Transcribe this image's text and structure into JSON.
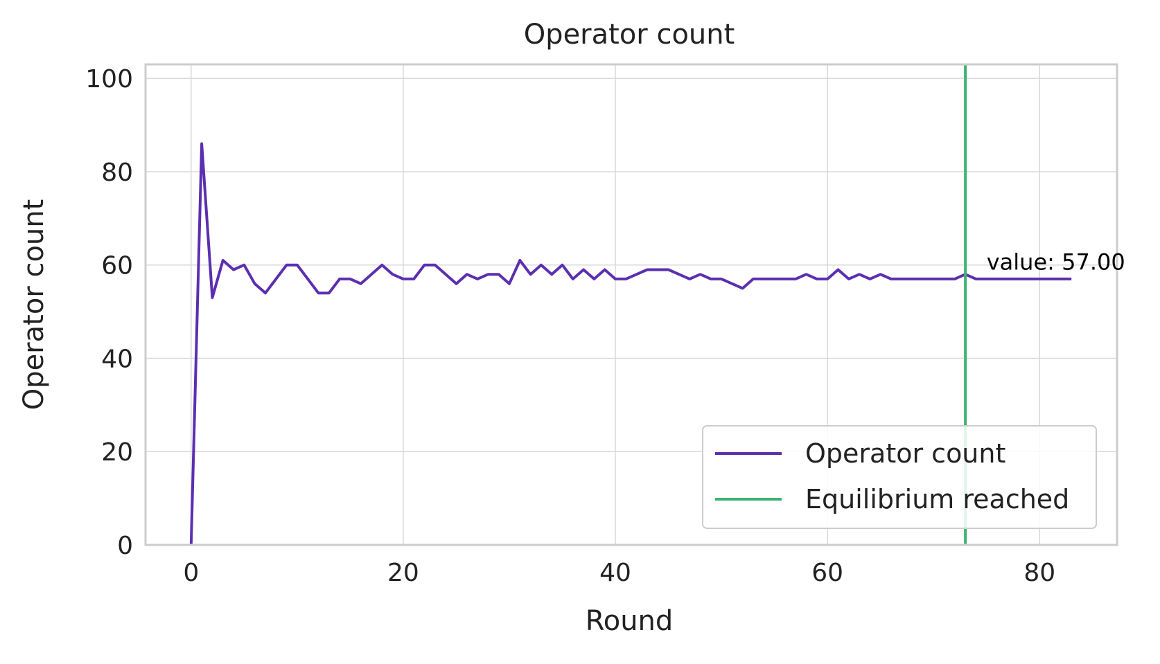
{
  "chart_data": {
    "type": "line",
    "title": "Operator count",
    "xlabel": "Round",
    "ylabel": "Operator count",
    "xlim": [
      -4.3,
      87.3
    ],
    "ylim": [
      0,
      103
    ],
    "xticks": [
      0,
      20,
      40,
      60,
      80
    ],
    "yticks": [
      0,
      20,
      40,
      60,
      80,
      100
    ],
    "grid": true,
    "legend_position": "lower-right",
    "series": [
      {
        "name": "Operator count",
        "color": "#5b2fb0",
        "x": [
          0,
          1,
          2,
          3,
          4,
          5,
          6,
          7,
          8,
          9,
          10,
          11,
          12,
          13,
          14,
          15,
          16,
          17,
          18,
          19,
          20,
          21,
          22,
          23,
          24,
          25,
          26,
          27,
          28,
          29,
          30,
          31,
          32,
          33,
          34,
          35,
          36,
          37,
          38,
          39,
          40,
          41,
          42,
          43,
          44,
          45,
          46,
          47,
          48,
          49,
          50,
          51,
          52,
          53,
          54,
          55,
          56,
          57,
          58,
          59,
          60,
          61,
          62,
          63,
          64,
          65,
          66,
          67,
          68,
          69,
          70,
          71,
          72,
          73,
          74,
          75,
          76,
          77,
          78,
          79,
          80,
          81,
          82,
          83
        ],
        "y": [
          0,
          86,
          53,
          61,
          59,
          60,
          56,
          54,
          57,
          60,
          60,
          57,
          54,
          54,
          57,
          57,
          56,
          58,
          60,
          58,
          57,
          57,
          60,
          60,
          58,
          56,
          58,
          57,
          58,
          58,
          56,
          61,
          58,
          60,
          58,
          60,
          57,
          59,
          57,
          59,
          57,
          57,
          58,
          59,
          59,
          59,
          58,
          57,
          58,
          57,
          57,
          56,
          55,
          57,
          57,
          57,
          57,
          57,
          58,
          57,
          57,
          59,
          57,
          58,
          57,
          58,
          57,
          57,
          57,
          57,
          57,
          57,
          57,
          58,
          57,
          57,
          57,
          57,
          57,
          57,
          57,
          57,
          57,
          57
        ]
      }
    ],
    "vline": {
      "x": 73,
      "name": "Equilibrium reached",
      "color": "#3cb371"
    },
    "annotation": {
      "text": "value: 57.00",
      "x": 75,
      "y": 59
    }
  }
}
